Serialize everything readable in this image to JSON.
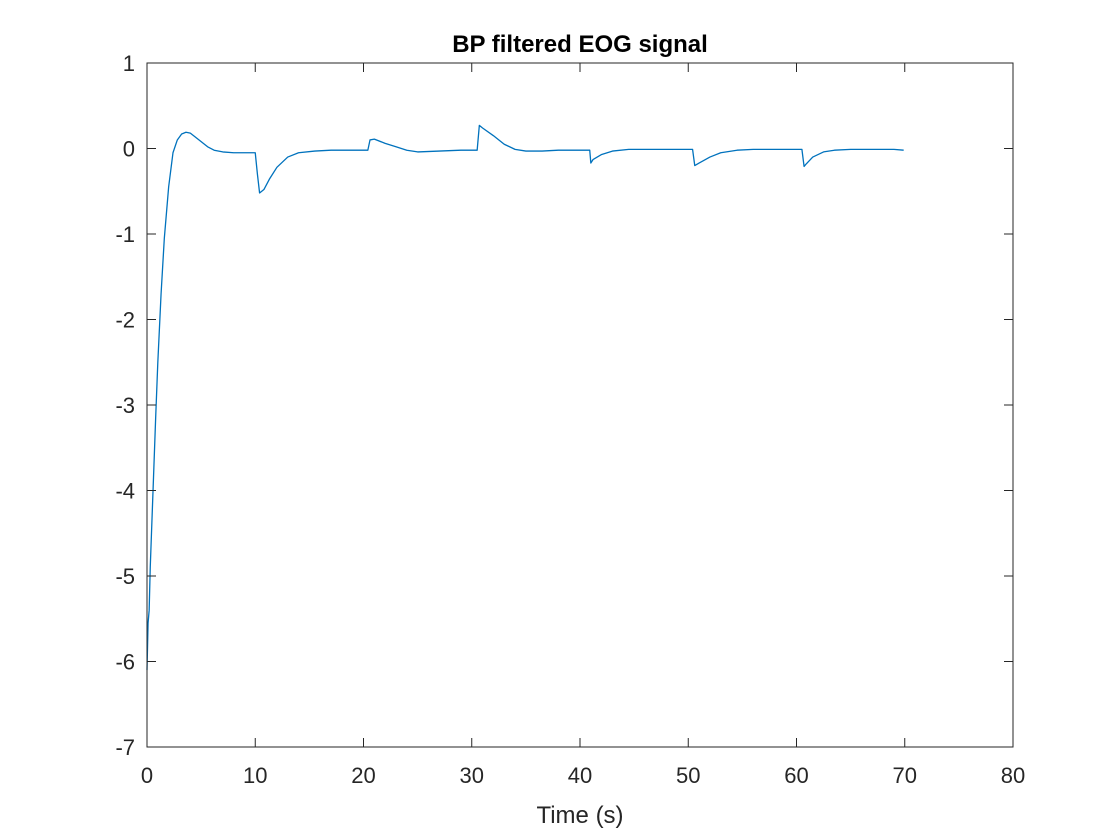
{
  "chart_data": {
    "type": "line",
    "title": "BP filtered EOG signal",
    "xlabel": "Time (s)",
    "ylabel": "",
    "xlim": [
      0,
      80
    ],
    "ylim": [
      -7,
      1
    ],
    "xticks": [
      0,
      10,
      20,
      30,
      40,
      50,
      60,
      70,
      80
    ],
    "yticks": [
      1,
      0,
      -1,
      -2,
      -3,
      -4,
      -5,
      -6,
      -7
    ],
    "grid": false,
    "legend": "none",
    "series": [
      {
        "color": "#0072BD",
        "x": [
          0,
          0.1,
          0.2,
          0.3,
          0.4,
          0.6,
          0.8,
          1.0,
          1.3,
          1.6,
          2.0,
          2.4,
          2.8,
          3.2,
          3.6,
          4.0,
          4.4,
          5.0,
          5.6,
          6.2,
          7.0,
          8.0,
          9.0,
          10.0,
          10.2,
          10.4,
          10.8,
          11.3,
          12.0,
          13.0,
          14.0,
          15.5,
          17.0,
          18.5,
          20.0,
          20.4,
          20.6,
          21.0,
          22.0,
          23.0,
          24.0,
          25.0,
          27.0,
          29.0,
          30.5,
          30.7,
          31.0,
          32.0,
          33.0,
          34.0,
          35.0,
          36.5,
          38.0,
          40.5,
          40.9,
          41.0,
          41.2,
          42.0,
          43.0,
          44.5,
          46.0,
          48.0,
          50.0,
          50.4,
          50.6,
          51.0,
          52.0,
          53.0,
          54.5,
          56.0,
          58.0,
          60.5,
          60.7,
          60.9,
          61.5,
          62.5,
          63.5,
          65.0,
          67.0,
          69.0,
          69.9
        ],
        "y": [
          -6.1,
          -5.55,
          -5.4,
          -4.9,
          -4.55,
          -3.85,
          -3.15,
          -2.5,
          -1.7,
          -1.05,
          -0.45,
          -0.05,
          0.1,
          0.17,
          0.19,
          0.18,
          0.14,
          0.08,
          0.02,
          -0.02,
          -0.04,
          -0.05,
          -0.05,
          -0.05,
          -0.3,
          -0.52,
          -0.48,
          -0.36,
          -0.22,
          -0.1,
          -0.05,
          -0.03,
          -0.02,
          -0.02,
          -0.02,
          -0.02,
          0.1,
          0.11,
          0.06,
          0.02,
          -0.02,
          -0.04,
          -0.03,
          -0.02,
          -0.02,
          0.27,
          0.24,
          0.15,
          0.05,
          -0.01,
          -0.03,
          -0.03,
          -0.02,
          -0.02,
          -0.02,
          -0.17,
          -0.13,
          -0.07,
          -0.03,
          -0.01,
          -0.01,
          -0.01,
          -0.01,
          -0.01,
          -0.2,
          -0.17,
          -0.1,
          -0.05,
          -0.02,
          -0.01,
          -0.01,
          -0.01,
          -0.21,
          -0.18,
          -0.1,
          -0.04,
          -0.02,
          -0.01,
          -0.01,
          -0.01,
          -0.02
        ]
      }
    ]
  }
}
